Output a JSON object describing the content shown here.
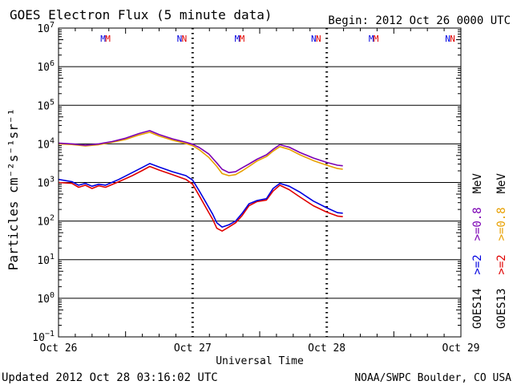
{
  "chart_data": {
    "type": "line",
    "title": "GOES Electron Flux (5 minute data)",
    "begin_label": "Begin: 2012 Oct 26 0000 UTC",
    "ylabel": "Particles cm⁻²s⁻¹sr⁻¹",
    "xlabel": "Universal Time",
    "y_scale": "log",
    "ylim": [
      0.1,
      10000000
    ],
    "xlim_days": [
      0,
      3
    ],
    "y_tick_exponents": [
      -1,
      0,
      1,
      2,
      3,
      4,
      5,
      6,
      7
    ],
    "x_ticks": [
      {
        "day": 0,
        "label": "Oct 26"
      },
      {
        "day": 1,
        "label": "Oct 27"
      },
      {
        "day": 2,
        "label": "Oct 28"
      },
      {
        "day": 3,
        "label": "Oct 29"
      }
    ],
    "alert_threshold": 1000,
    "mn_markers": [
      {
        "day": 0.35,
        "label": "M"
      },
      {
        "day": 0.92,
        "label": "N"
      },
      {
        "day": 1.35,
        "label": "M"
      },
      {
        "day": 1.92,
        "label": "N"
      },
      {
        "day": 2.35,
        "label": "M"
      },
      {
        "day": 2.92,
        "label": "N"
      }
    ],
    "series": [
      {
        "name": "GOES13 >=0.8 MeV",
        "color": "#e8a000",
        "points": [
          [
            0.0,
            10000
          ],
          [
            0.1,
            9600
          ],
          [
            0.2,
            8800
          ],
          [
            0.3,
            9500
          ],
          [
            0.4,
            11000
          ],
          [
            0.5,
            13000
          ],
          [
            0.6,
            17000
          ],
          [
            0.68,
            20000
          ],
          [
            0.75,
            16000
          ],
          [
            0.85,
            12500
          ],
          [
            0.95,
            10200
          ],
          [
            1.0,
            9000
          ],
          [
            1.05,
            7000
          ],
          [
            1.12,
            4500
          ],
          [
            1.18,
            2600
          ],
          [
            1.22,
            1700
          ],
          [
            1.27,
            1500
          ],
          [
            1.32,
            1600
          ],
          [
            1.37,
            2000
          ],
          [
            1.42,
            2600
          ],
          [
            1.48,
            3600
          ],
          [
            1.55,
            4700
          ],
          [
            1.6,
            6500
          ],
          [
            1.65,
            8500
          ],
          [
            1.72,
            7200
          ],
          [
            1.8,
            5200
          ],
          [
            1.9,
            3700
          ],
          [
            2.0,
            2800
          ],
          [
            2.08,
            2300
          ],
          [
            2.12,
            2200
          ]
        ]
      },
      {
        "name": "GOES14 >=0.8 MeV",
        "color": "#7b00b4",
        "points": [
          [
            0.0,
            10500
          ],
          [
            0.1,
            10000
          ],
          [
            0.2,
            9200
          ],
          [
            0.3,
            10000
          ],
          [
            0.4,
            11500
          ],
          [
            0.5,
            14000
          ],
          [
            0.6,
            18500
          ],
          [
            0.68,
            22000
          ],
          [
            0.75,
            17500
          ],
          [
            0.85,
            13500
          ],
          [
            0.95,
            11000
          ],
          [
            1.0,
            9800
          ],
          [
            1.05,
            8000
          ],
          [
            1.12,
            5500
          ],
          [
            1.18,
            3200
          ],
          [
            1.22,
            2200
          ],
          [
            1.27,
            1800
          ],
          [
            1.32,
            1900
          ],
          [
            1.37,
            2400
          ],
          [
            1.42,
            3000
          ],
          [
            1.48,
            4000
          ],
          [
            1.55,
            5200
          ],
          [
            1.6,
            7200
          ],
          [
            1.65,
            9500
          ],
          [
            1.72,
            8200
          ],
          [
            1.8,
            6000
          ],
          [
            1.9,
            4300
          ],
          [
            2.0,
            3300
          ],
          [
            2.08,
            2800
          ],
          [
            2.12,
            2700
          ]
        ]
      },
      {
        "name": "GOES13 >=2 MeV",
        "color": "#e00000",
        "points": [
          [
            0.0,
            1000
          ],
          [
            0.1,
            950
          ],
          [
            0.15,
            750
          ],
          [
            0.2,
            850
          ],
          [
            0.25,
            700
          ],
          [
            0.3,
            820
          ],
          [
            0.35,
            750
          ],
          [
            0.45,
            1050
          ],
          [
            0.55,
            1500
          ],
          [
            0.62,
            2000
          ],
          [
            0.68,
            2600
          ],
          [
            0.75,
            2100
          ],
          [
            0.85,
            1600
          ],
          [
            0.95,
            1200
          ],
          [
            1.0,
            900
          ],
          [
            1.05,
            450
          ],
          [
            1.1,
            220
          ],
          [
            1.15,
            110
          ],
          [
            1.18,
            65
          ],
          [
            1.22,
            55
          ],
          [
            1.27,
            70
          ],
          [
            1.32,
            90
          ],
          [
            1.37,
            140
          ],
          [
            1.42,
            250
          ],
          [
            1.48,
            320
          ],
          [
            1.55,
            350
          ],
          [
            1.6,
            600
          ],
          [
            1.65,
            850
          ],
          [
            1.72,
            650
          ],
          [
            1.8,
            420
          ],
          [
            1.9,
            250
          ],
          [
            2.0,
            170
          ],
          [
            2.08,
            135
          ],
          [
            2.12,
            130
          ]
        ]
      },
      {
        "name": "GOES14 >=2 MeV",
        "color": "#0000e0",
        "points": [
          [
            0.0,
            1200
          ],
          [
            0.1,
            1050
          ],
          [
            0.15,
            850
          ],
          [
            0.2,
            950
          ],
          [
            0.25,
            800
          ],
          [
            0.3,
            900
          ],
          [
            0.35,
            850
          ],
          [
            0.45,
            1200
          ],
          [
            0.55,
            1800
          ],
          [
            0.62,
            2400
          ],
          [
            0.68,
            3100
          ],
          [
            0.75,
            2500
          ],
          [
            0.85,
            1900
          ],
          [
            0.95,
            1500
          ],
          [
            1.0,
            1150
          ],
          [
            1.05,
            600
          ],
          [
            1.1,
            300
          ],
          [
            1.15,
            150
          ],
          [
            1.18,
            90
          ],
          [
            1.22,
            70
          ],
          [
            1.27,
            80
          ],
          [
            1.32,
            100
          ],
          [
            1.37,
            160
          ],
          [
            1.42,
            280
          ],
          [
            1.48,
            340
          ],
          [
            1.55,
            380
          ],
          [
            1.6,
            700
          ],
          [
            1.65,
            950
          ],
          [
            1.72,
            800
          ],
          [
            1.8,
            560
          ],
          [
            1.9,
            330
          ],
          [
            2.0,
            220
          ],
          [
            2.08,
            165
          ],
          [
            2.12,
            160
          ]
        ]
      }
    ],
    "legend": {
      "groups": [
        {
          "satellite": "GOES14",
          "high": ">=2",
          "low": ">=0.8",
          "unit": "MeV",
          "high_color": "#0000e0",
          "low_color": "#7b00b4"
        },
        {
          "satellite": "GOES13",
          "high": ">=2",
          "low": ">=0.8",
          "unit": "MeV",
          "high_color": "#e00000",
          "low_color": "#e8a000"
        }
      ]
    }
  },
  "footer": {
    "updated": "Updated 2012 Oct 28 03:16:02 UTC",
    "credit": "NOAA/SWPC Boulder, CO USA"
  }
}
